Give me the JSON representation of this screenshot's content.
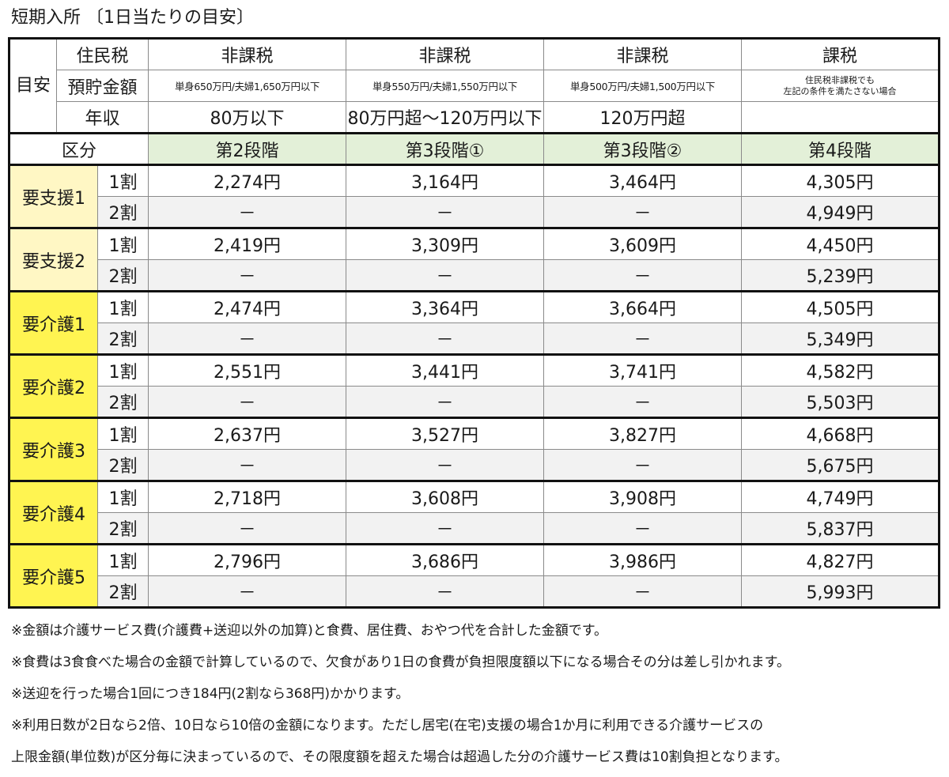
{
  "title": "短期入所 〔1日当たりの目安〕",
  "header": {
    "meyasu_label": "目安",
    "row_labels": {
      "juminzei": "住民税",
      "yochokin": "預貯金額",
      "nenshu": "年収",
      "kubun": "区分"
    },
    "columns": [
      {
        "tax": "非課税",
        "savings": "単身650万円/夫婦1,650万円以下",
        "income": "80万以下",
        "stage": "第2段階"
      },
      {
        "tax": "非課税",
        "savings": "単身550万円/夫婦1,550万円以下",
        "income": "80万円超～120万円以下",
        "stage": "第3段階①"
      },
      {
        "tax": "非課税",
        "savings": "単身500万円/夫婦1,500万円以下",
        "income": "120万円超",
        "stage": "第3段階②"
      },
      {
        "tax": "課税",
        "savings_line1": "住民税非課税でも",
        "savings_line2": "左記の条件を満たさない場合",
        "income": "",
        "stage": "第4段階"
      }
    ]
  },
  "rows": [
    {
      "level": "要支援1",
      "r1": {
        "wari": "1割",
        "vals": [
          "2,274円",
          "3,164円",
          "3,464円",
          "4,305円"
        ]
      },
      "r2": {
        "wari": "2割",
        "vals": [
          "－",
          "－",
          "－",
          "4,949円"
        ]
      }
    },
    {
      "level": "要支援2",
      "r1": {
        "wari": "1割",
        "vals": [
          "2,419円",
          "3,309円",
          "3,609円",
          "4,450円"
        ]
      },
      "r2": {
        "wari": "2割",
        "vals": [
          "－",
          "－",
          "－",
          "5,239円"
        ]
      }
    },
    {
      "level": "要介護1",
      "r1": {
        "wari": "1割",
        "vals": [
          "2,474円",
          "3,364円",
          "3,664円",
          "4,505円"
        ]
      },
      "r2": {
        "wari": "2割",
        "vals": [
          "－",
          "－",
          "－",
          "5,349円"
        ]
      }
    },
    {
      "level": "要介護2",
      "r1": {
        "wari": "1割",
        "vals": [
          "2,551円",
          "3,441円",
          "3,741円",
          "4,582円"
        ]
      },
      "r2": {
        "wari": "2割",
        "vals": [
          "－",
          "－",
          "－",
          "5,503円"
        ]
      }
    },
    {
      "level": "要介護3",
      "r1": {
        "wari": "1割",
        "vals": [
          "2,637円",
          "3,527円",
          "3,827円",
          "4,668円"
        ]
      },
      "r2": {
        "wari": "2割",
        "vals": [
          "－",
          "－",
          "－",
          "5,675円"
        ]
      }
    },
    {
      "level": "要介護4",
      "r1": {
        "wari": "1割",
        "vals": [
          "2,718円",
          "3,608円",
          "3,908円",
          "4,749円"
        ]
      },
      "r2": {
        "wari": "2割",
        "vals": [
          "－",
          "－",
          "－",
          "5,837円"
        ]
      }
    },
    {
      "level": "要介護5",
      "r1": {
        "wari": "1割",
        "vals": [
          "2,796円",
          "3,686円",
          "3,986円",
          "4,827円"
        ]
      },
      "r2": {
        "wari": "2割",
        "vals": [
          "－",
          "－",
          "－",
          "5,993円"
        ]
      }
    }
  ],
  "colors": {
    "shien_bg": "#fff7c4",
    "kaigo_bg": "#fff451",
    "stage_bg": "#e3f0d8",
    "alt_row_bg": "#f2f2f2"
  },
  "notes": [
    "※金額は介護サービス費(介護費+送迎以外の加算)と食費、居住費、おやつ代を合計した金額です。",
    "※食費は3食食べた場合の金額で計算しているので、欠食があり1日の食費が負担限度額以下になる場合その分は差し引かれます。",
    "※送迎を行った場合1回につき184円(2割なら368円)かかります。",
    "※利用日数が2日なら2倍、10日なら10倍の金額になります。ただし居宅(在宅)支援の場合1か月に利用できる介護サービスの",
    "上限金額(単位数)が区分毎に決まっているので、その限度額を超えた場合は超過した分の介護サービス費は10割負担となります。"
  ]
}
